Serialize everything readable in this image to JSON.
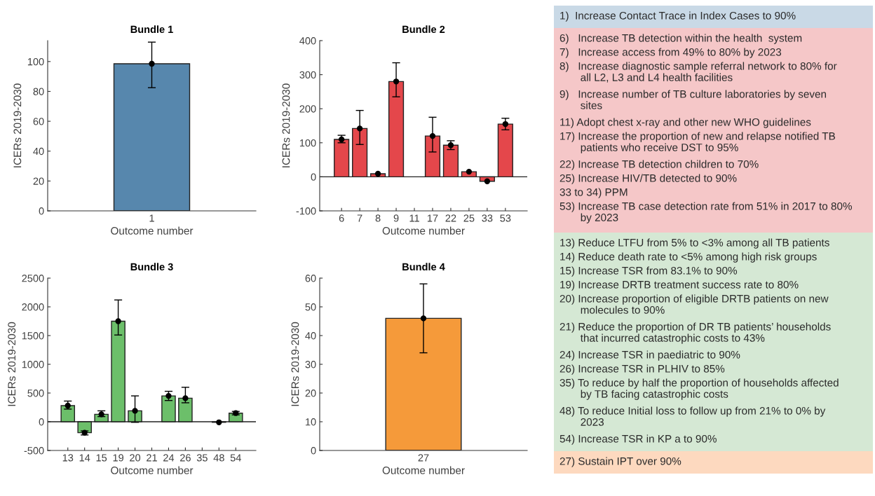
{
  "chart_data": [
    {
      "type": "bar",
      "title": "Bundle 1",
      "xlabel": "Outcome number",
      "ylabel": "ICERs 2019-2030",
      "categories": [
        "1"
      ],
      "series": [
        {
          "type": "bar",
          "color": "#5787ad",
          "values": [
            98.5
          ],
          "errors": [
            [
              82.5,
              113
            ]
          ]
        },
        {
          "type": "scatter",
          "color": "#000000",
          "marker": "circle",
          "x": [
            "1"
          ],
          "values": [
            98.5
          ]
        }
      ],
      "ylim": [
        0,
        114
      ],
      "yticks": [
        0,
        20,
        40,
        60,
        80,
        100
      ]
    },
    {
      "type": "bar",
      "title": "Bundle 2",
      "xlabel": "Outcome number",
      "ylabel": "ICERs 2019-2030",
      "categories": [
        "6",
        "7",
        "8",
        "9",
        "11",
        "17",
        "22",
        "25",
        "33",
        "53"
      ],
      "series": [
        {
          "type": "bar",
          "color": "#e4474b",
          "values": [
            110,
            142,
            9,
            280,
            null,
            120,
            93,
            15,
            -13,
            155
          ],
          "errors": [
            [
              100,
              122
            ],
            [
              95,
              195
            ],
            null,
            [
              235,
              335
            ],
            null,
            [
              73,
              175
            ],
            [
              80,
              106
            ],
            null,
            null,
            [
              138,
              172
            ]
          ]
        },
        {
          "type": "scatter",
          "color": "#000000",
          "marker": "circle",
          "x": [
            "6",
            "7",
            "8",
            "9",
            "17",
            "22",
            "25",
            "33",
            "53"
          ],
          "values": [
            110,
            142,
            9,
            280,
            120,
            93,
            15,
            -13,
            155
          ]
        }
      ],
      "ylim": [
        -100,
        400
      ],
      "yticks": [
        -100,
        0,
        100,
        200,
        300,
        400
      ],
      "ref_lines": [
        {
          "axis": "y",
          "value": 0
        }
      ]
    },
    {
      "type": "bar",
      "title": "Bundle 3",
      "xlabel": "Outcome number",
      "ylabel": "ICERs 2019-2030",
      "categories": [
        "13",
        "14",
        "15",
        "19",
        "20",
        "21",
        "24",
        "26",
        "35",
        "48",
        "54"
      ],
      "series": [
        {
          "type": "bar",
          "color": "#6cbf6a",
          "values": [
            280,
            -190,
            130,
            1750,
            190,
            null,
            450,
            410,
            null,
            -10,
            150
          ],
          "errors": [
            [
              220,
              360
            ],
            [
              -230,
              -160
            ],
            [
              90,
              190
            ],
            [
              1510,
              2120
            ],
            [
              -10,
              450
            ],
            null,
            [
              370,
              530
            ],
            [
              330,
              600
            ],
            null,
            null,
            [
              120,
              180
            ]
          ]
        },
        {
          "type": "scatter",
          "color": "#000000",
          "marker": "circle",
          "x": [
            "13",
            "14",
            "15",
            "19",
            "20",
            "24",
            "26",
            "48",
            "54"
          ],
          "values": [
            280,
            -190,
            130,
            1750,
            190,
            450,
            410,
            -10,
            150
          ]
        }
      ],
      "ylim": [
        -500,
        2500
      ],
      "yticks": [
        -500,
        0,
        500,
        1000,
        1500,
        2000,
        2500
      ],
      "ref_lines": [
        {
          "axis": "y",
          "value": 0
        }
      ]
    },
    {
      "type": "bar",
      "title": "Bundle 4",
      "xlabel": "Outcome number",
      "ylabel": "ICERs 2019-2030",
      "categories": [
        "27"
      ],
      "series": [
        {
          "type": "bar",
          "color": "#f59a3a",
          "values": [
            46
          ],
          "errors": [
            [
              34,
              58
            ]
          ]
        },
        {
          "type": "scatter",
          "color": "#000000",
          "marker": "circle",
          "x": [
            "27"
          ],
          "values": [
            46
          ]
        }
      ],
      "ylim": [
        0,
        60
      ],
      "yticks": [
        0,
        10,
        20,
        30,
        40,
        50,
        60
      ]
    },
    {
      "type": "other",
      "annotations": [
        "1)  Increase Contact Trace in Index Cases to 90%",
        "6)   Increase TB detection within the health  system",
        "7)   Increase access from 49% to 80% by 2023",
        "8)   Increase diagnostic sample referral network to 80% for\n       all L2, L3 and L4 health facilities",
        "9)   Increase number of TB culture laboratories by seven\n       sites",
        "11) Adopt chest x-ray and other new WHO guidelines",
        "17) Increase the proportion of new and relapse notified TB\n       patients who receive DST to 95%",
        "22) Increase TB detection children to 70%",
        "25) Increase HIV/TB detected to 90%",
        "33 to 34) PPM",
        "53) Increase TB case detection rate from 51% in 2017 to 80%\n       by 2023",
        "13) Reduce LTFU from 5% to <3% among all TB patients",
        "14) Reduce death rate to <5% among high risk groups",
        "15) Increase TSR from 83.1% to 90%",
        "19) Increase DRTB treatment success rate to 80%",
        "20) Increase proportion of eligible DRTB patients on new\n       molecules to 90%",
        "21) Reduce the proportion of DR TB patients’ households\n       that incurred catastrophic costs to 43%",
        "24) Increase TSR in paediatric to 90%",
        "26) Increase TSR in PLHIV to 85%",
        "35) To reduce by half the proportion of households affected\n       by TB facing catastrophic costs",
        "48) To reduce Initial loss to follow up from 21% to 0% by\n       2023",
        "54) Increase TSR in KP a to 90%",
        "27) Sustain IPT over 90%"
      ],
      "colors": [
        "#c9d9e6",
        "#f5c7c8",
        "#f5c7c8",
        "#f5c7c8",
        "#f5c7c8",
        "#f5c7c8",
        "#f5c7c8",
        "#f5c7c8",
        "#f5c7c8",
        "#f5c7c8",
        "#f5c7c8",
        "#d5e8d4",
        "#d5e8d4",
        "#d5e8d4",
        "#d5e8d4",
        "#d5e8d4",
        "#d5e8d4",
        "#d5e8d4",
        "#d5e8d4",
        "#d5e8d4",
        "#d5e8d4",
        "#d5e8d4",
        "#fdd9bf"
      ]
    }
  ]
}
